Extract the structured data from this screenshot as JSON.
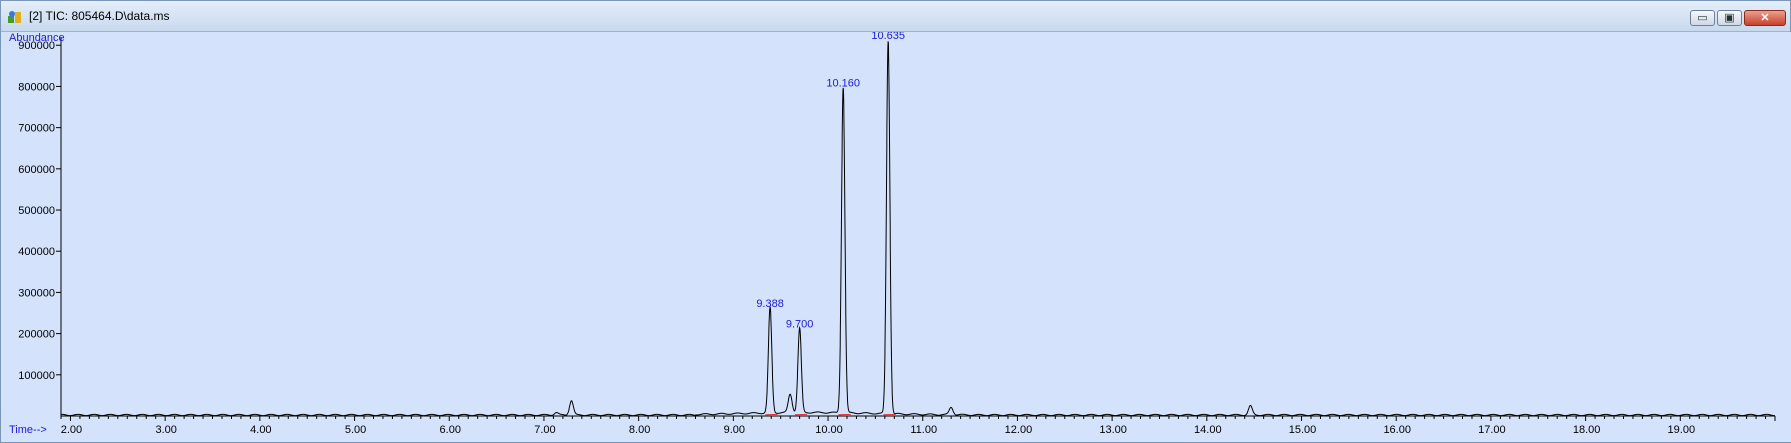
{
  "window": {
    "title": "[2] TIC: 805464.D\\data.ms",
    "controls": {
      "minimize": "▭",
      "maximize": "▣",
      "close": "✕"
    }
  },
  "chart_data": {
    "type": "line",
    "ylabel": "Abundance",
    "xlabel": "Time-->",
    "xlim": [
      1.9,
      20.0
    ],
    "ylim": [
      0,
      920000
    ],
    "x_ticks": [
      "2.00",
      "3.00",
      "4.00",
      "5.00",
      "6.00",
      "7.00",
      "8.00",
      "9.00",
      "10.00",
      "11.00",
      "12.00",
      "13.00",
      "14.00",
      "15.00",
      "16.00",
      "17.00",
      "18.00",
      "19.00"
    ],
    "y_ticks": [
      "100000",
      "200000",
      "300000",
      "400000",
      "500000",
      "600000",
      "700000",
      "800000",
      "900000"
    ],
    "line_color": "#000000",
    "label_color": "#1a1ad6",
    "peaks": [
      {
        "label": "9.388",
        "rt": 9.388,
        "height": 255000
      },
      {
        "label": "9.700",
        "rt": 9.7,
        "height": 205000
      },
      {
        "label": "10.160",
        "rt": 10.16,
        "height": 790000
      },
      {
        "label": "10.635",
        "rt": 10.635,
        "height": 905000
      }
    ],
    "minor_peaks": [
      {
        "rt": 7.13,
        "height": 6000
      },
      {
        "rt": 7.29,
        "height": 35000
      },
      {
        "rt": 9.6,
        "height": 45000
      },
      {
        "rt": 11.3,
        "height": 18000
      },
      {
        "rt": 14.46,
        "height": 22000
      }
    ]
  }
}
